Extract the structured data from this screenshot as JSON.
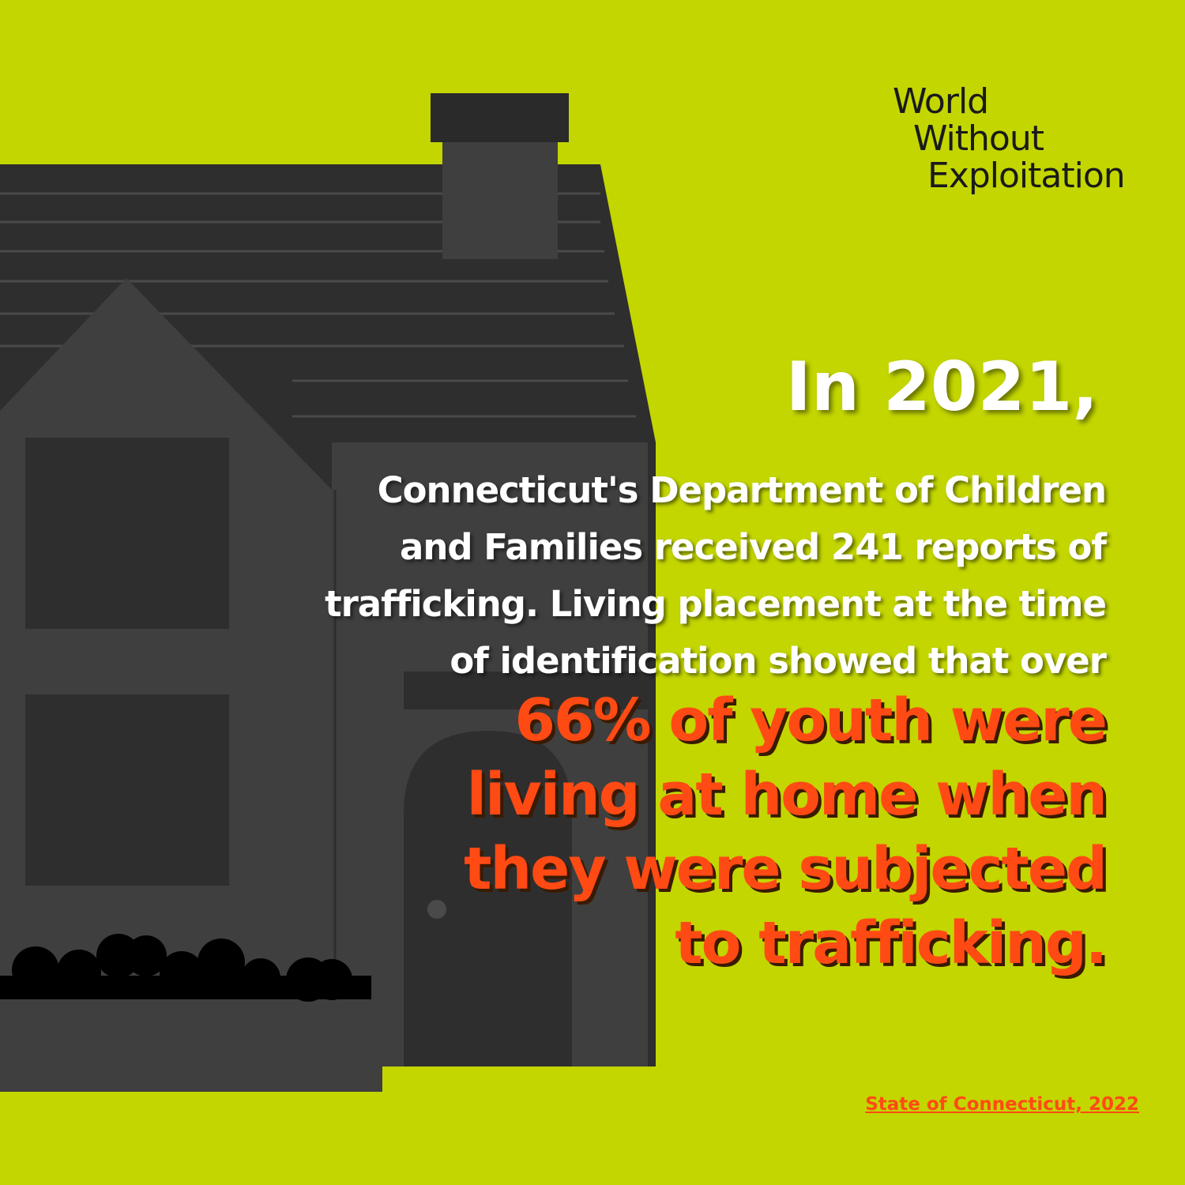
{
  "brand": {
    "lines": [
      "World",
      "Without",
      "Exploitation"
    ]
  },
  "headline": "In 2021,",
  "body": [
    "Connecticut's Department of Children",
    "and Families received 241 reports of",
    "trafficking. Living placement at the time",
    "of identification showed that over"
  ],
  "highlight": [
    "66% of youth were",
    "living at home when",
    "they were subjected",
    "to trafficking."
  ],
  "source": "State of Connecticut, 2022"
}
